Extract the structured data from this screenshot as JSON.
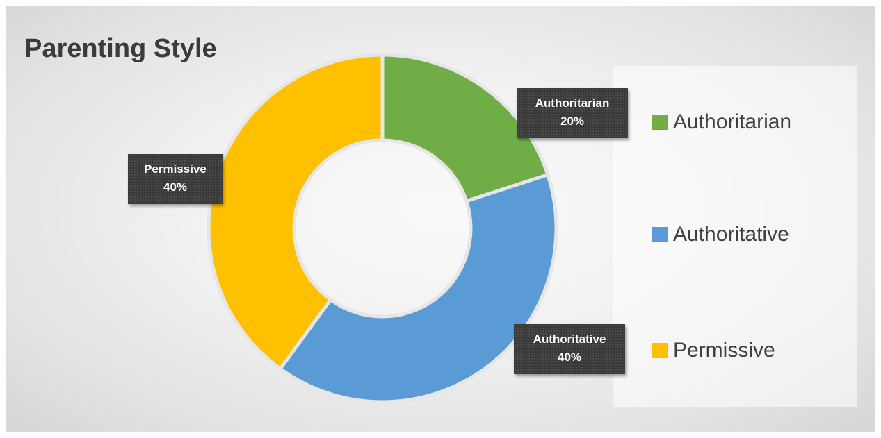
{
  "chart_data": {
    "type": "pie",
    "style": "donut",
    "title": "Parenting Style",
    "categories": [
      "Authoritarian",
      "Authoritative",
      "Permissive"
    ],
    "values": [
      20,
      40,
      40
    ],
    "value_labels": [
      "20%",
      "40%",
      "40%"
    ],
    "colors": [
      "#70AD47",
      "#5B9BD5",
      "#FFC000"
    ],
    "legend_position": "right",
    "data_labels": [
      {
        "category": "Authoritarian",
        "value": "20%"
      },
      {
        "category": "Authoritative",
        "value": "40%"
      },
      {
        "category": "Permissive",
        "value": "40%"
      }
    ]
  }
}
